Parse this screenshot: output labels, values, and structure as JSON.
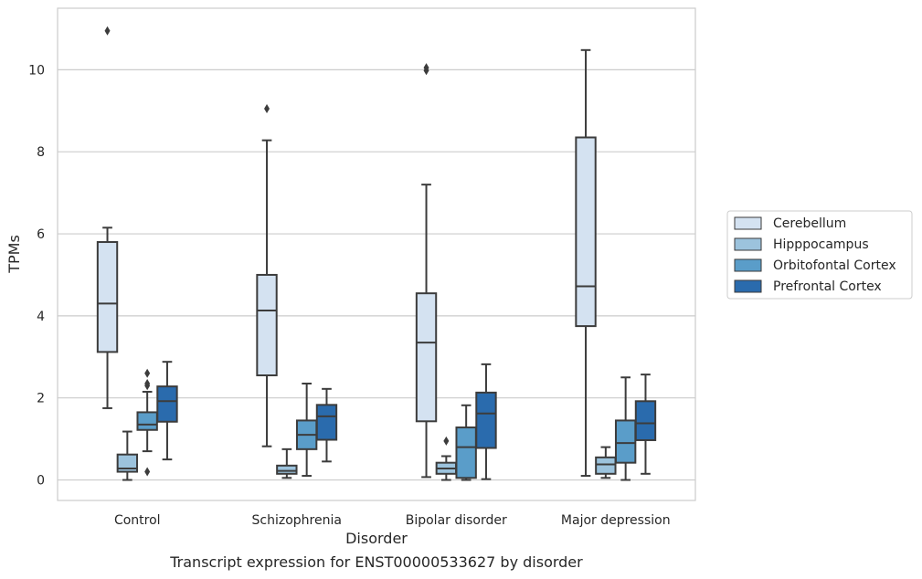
{
  "chart_data": {
    "type": "boxplot",
    "xlabel": "Disorder",
    "ylabel": "TPMs",
    "caption": "Transcript expression for ENST00000533627 by disorder",
    "ylim": [
      -0.5,
      11.5
    ],
    "yticks": [
      0,
      2,
      4,
      6,
      8,
      10
    ],
    "grid": "horizontal",
    "legend_position": "right",
    "categories": [
      "Control",
      "Schizophrenia",
      "Bipolar disorder",
      "Major depression"
    ],
    "series": [
      {
        "name": "Cerebellum",
        "color": "#d4e2f1",
        "boxes": [
          {
            "whislo": 1.75,
            "q1": 3.12,
            "med": 4.3,
            "q3": 5.8,
            "whishi": 6.15,
            "fliers": [
              10.95
            ]
          },
          {
            "whislo": 0.82,
            "q1": 2.55,
            "med": 4.13,
            "q3": 5.0,
            "whishi": 8.28,
            "fliers": [
              9.05
            ]
          },
          {
            "whislo": 0.07,
            "q1": 1.43,
            "med": 3.35,
            "q3": 4.55,
            "whishi": 7.2,
            "fliers": [
              9.98,
              10.05
            ]
          },
          {
            "whislo": 0.1,
            "q1": 3.75,
            "med": 4.72,
            "q3": 8.35,
            "whishi": 10.48,
            "fliers": []
          }
        ]
      },
      {
        "name": "Hipppocampus",
        "color": "#9cc3dd",
        "boxes": [
          {
            "whislo": 0.0,
            "q1": 0.2,
            "med": 0.28,
            "q3": 0.62,
            "whishi": 1.18,
            "fliers": []
          },
          {
            "whislo": 0.05,
            "q1": 0.15,
            "med": 0.22,
            "q3": 0.35,
            "whishi": 0.75,
            "fliers": []
          },
          {
            "whislo": 0.0,
            "q1": 0.15,
            "med": 0.28,
            "q3": 0.42,
            "whishi": 0.58,
            "fliers": [
              0.95
            ]
          },
          {
            "whislo": 0.05,
            "q1": 0.15,
            "med": 0.38,
            "q3": 0.55,
            "whishi": 0.8,
            "fliers": []
          }
        ]
      },
      {
        "name": "Orbitofontal Cortex",
        "color": "#5a9dc9",
        "boxes": [
          {
            "whislo": 0.7,
            "q1": 1.22,
            "med": 1.35,
            "q3": 1.65,
            "whishi": 2.15,
            "fliers": [
              2.6,
              2.3,
              2.35,
              0.2
            ]
          },
          {
            "whislo": 0.1,
            "q1": 0.75,
            "med": 1.1,
            "q3": 1.45,
            "whishi": 2.35,
            "fliers": []
          },
          {
            "whislo": 0.0,
            "q1": 0.05,
            "med": 0.8,
            "q3": 1.28,
            "whishi": 1.82,
            "fliers": []
          },
          {
            "whislo": 0.0,
            "q1": 0.42,
            "med": 0.9,
            "q3": 1.45,
            "whishi": 2.5,
            "fliers": []
          }
        ]
      },
      {
        "name": "Prefrontal Cortex",
        "color": "#2a6bad",
        "boxes": [
          {
            "whislo": 0.5,
            "q1": 1.42,
            "med": 1.92,
            "q3": 2.28,
            "whishi": 2.88,
            "fliers": []
          },
          {
            "whislo": 0.45,
            "q1": 0.98,
            "med": 1.55,
            "q3": 1.83,
            "whishi": 2.22,
            "fliers": []
          },
          {
            "whislo": 0.02,
            "q1": 0.78,
            "med": 1.62,
            "q3": 2.13,
            "whishi": 2.82,
            "fliers": []
          },
          {
            "whislo": 0.15,
            "q1": 0.97,
            "med": 1.38,
            "q3": 1.92,
            "whishi": 2.57,
            "fliers": []
          }
        ]
      }
    ]
  }
}
